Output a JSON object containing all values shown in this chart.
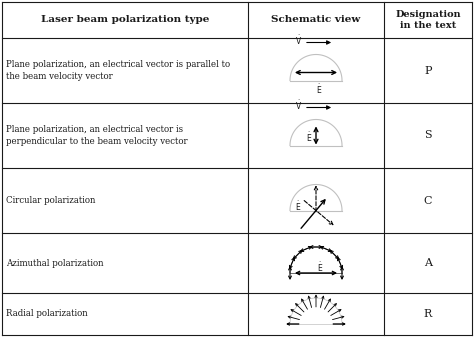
{
  "title_col1": "Laser beam polarization type",
  "title_col2": "Schematic view",
  "title_col3": "Designation\nin the text",
  "rows": [
    {
      "label": "Plane polarization, an electrical vector is parallel to\nthe beam velocity vector",
      "designation": "P"
    },
    {
      "label": "Plane polarization, an electrical vector is\nperpendicular to the beam velocity vector",
      "designation": "S"
    },
    {
      "label": "Circular polarization",
      "designation": "C"
    },
    {
      "label": "Azimuthal polarization",
      "designation": "A"
    },
    {
      "label": "Radial polarization",
      "designation": "R"
    }
  ],
  "bg_color": "#ffffff",
  "line_color": "#1a1a1a",
  "text_color": "#1a1a1a",
  "semicircle_color": "#c0c0c0"
}
